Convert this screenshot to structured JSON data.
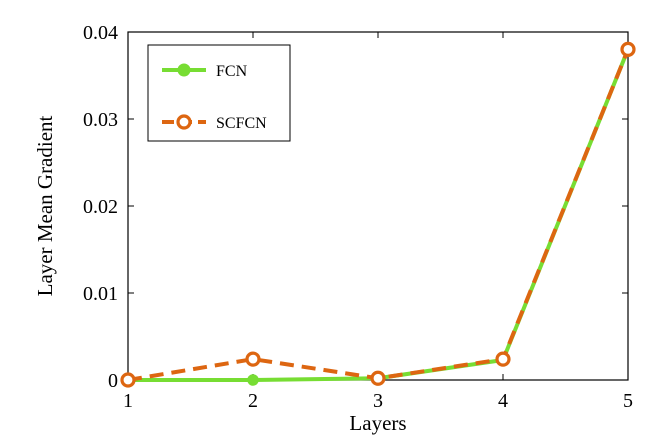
{
  "chart_data": {
    "type": "line",
    "title": "",
    "xlabel": "Layers",
    "ylabel": "Layer Mean Gradient",
    "x": [
      1,
      2,
      3,
      4,
      5
    ],
    "x_ticks": [
      "1",
      "2",
      "3",
      "4",
      "5"
    ],
    "y_ticks": [
      "0",
      "0.01",
      "0.02",
      "0.03",
      "0.04"
    ],
    "y_tick_values": [
      0,
      0.01,
      0.02,
      0.03,
      0.04
    ],
    "xlim": [
      1,
      5
    ],
    "ylim": [
      0,
      0.04
    ],
    "grid": false,
    "legend_position": "top-left",
    "series": [
      {
        "name": "FCN",
        "values": [
          0.0,
          0.0,
          0.0002,
          0.0023,
          0.038
        ],
        "color": "#77dd33",
        "line_style": "solid",
        "marker": "filled-circle"
      },
      {
        "name": "SCFCN",
        "values": [
          0.0,
          0.0024,
          0.0002,
          0.0024,
          0.038
        ],
        "color": "#dd6611",
        "line_style": "dashed",
        "marker": "open-circle"
      }
    ]
  }
}
